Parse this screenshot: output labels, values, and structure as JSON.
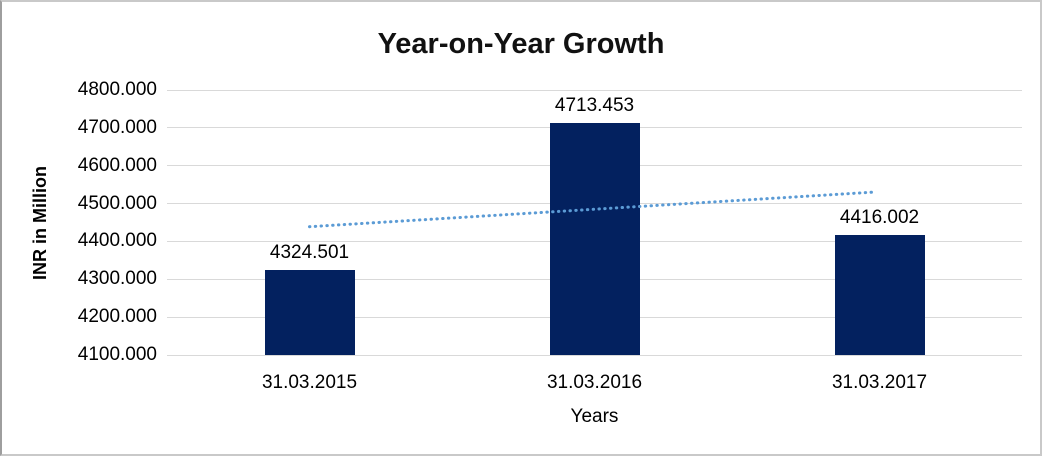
{
  "chart_data": {
    "type": "bar",
    "title": "Year-on-Year Growth",
    "xlabel": "Years",
    "ylabel": "INR in Million",
    "categories": [
      "31.03.2015",
      "31.03.2016",
      "31.03.2017"
    ],
    "values": [
      4324.501,
      4713.453,
      4416.002
    ],
    "value_labels": [
      "4324.501",
      "4713.453",
      "4416.002"
    ],
    "ylim": [
      4100,
      4800
    ],
    "yticks": [
      {
        "value": 4100,
        "label": "4100.000"
      },
      {
        "value": 4200,
        "label": "4200.000"
      },
      {
        "value": 4300,
        "label": "4300.000"
      },
      {
        "value": 4400,
        "label": "4400.000"
      },
      {
        "value": 4500,
        "label": "4500.000"
      },
      {
        "value": 4600,
        "label": "4600.000"
      },
      {
        "value": 4700,
        "label": "4700.000"
      },
      {
        "value": 4800,
        "label": "4800.000"
      }
    ],
    "grid": true,
    "legend": "none",
    "trendline": {
      "kind": "linear",
      "style": "dotted",
      "start_value": 4438.902,
      "end_value": 4530.403
    },
    "colors": {
      "bar": "#03215f",
      "gridline": "#d9d9d9",
      "trendline": "#5b9bd5",
      "title": "#111111",
      "background": "#ffffff",
      "frame_border": "#c9c9c9"
    }
  }
}
